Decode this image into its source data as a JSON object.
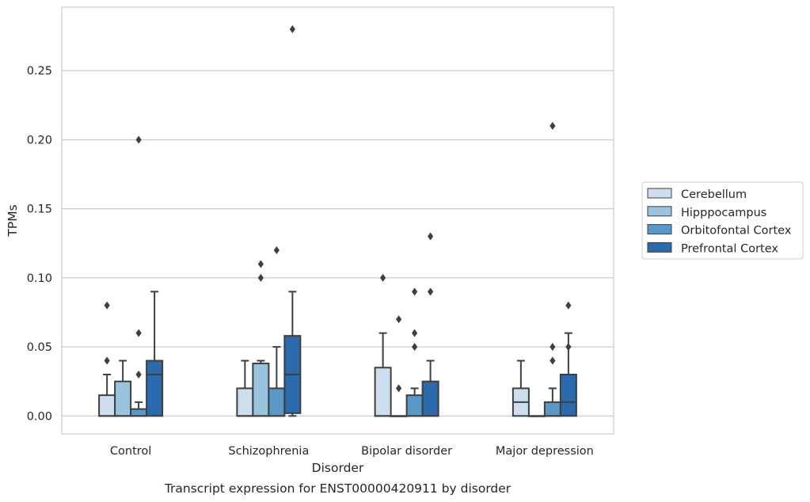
{
  "chart_data": {
    "type": "box",
    "caption": "Transcript expression for ENST00000420911 by disorder",
    "xlabel": "Disorder",
    "ylabel": "TPMs",
    "ylim": [
      -0.013,
      0.296
    ],
    "yticks": [
      0.0,
      0.05,
      0.1,
      0.15,
      0.2,
      0.25
    ],
    "ytick_labels": [
      "0.00",
      "0.05",
      "0.10",
      "0.15",
      "0.20",
      "0.25"
    ],
    "grid": "horizontal",
    "legend_position": "right",
    "categories": [
      "Control",
      "Schizophrenia",
      "Bipolar disorder",
      "Major depression"
    ],
    "series": [
      {
        "name": "Cerebellum",
        "color": "#cddeef",
        "boxes": [
          {
            "whisker_low": 0.0,
            "q1": 0.0,
            "median": 0.0,
            "q3": 0.015,
            "whisker_high": 0.03,
            "outliers": [
              0.04,
              0.08
            ]
          },
          {
            "whisker_low": 0.0,
            "q1": 0.0,
            "median": 0.0,
            "q3": 0.02,
            "whisker_high": 0.04,
            "outliers": []
          },
          {
            "whisker_low": 0.0,
            "q1": 0.0,
            "median": 0.0,
            "q3": 0.035,
            "whisker_high": 0.06,
            "outliers": [
              0.1
            ]
          },
          {
            "whisker_low": 0.0,
            "q1": 0.0,
            "median": 0.01,
            "q3": 0.02,
            "whisker_high": 0.04,
            "outliers": []
          }
        ]
      },
      {
        "name": "Hipppocampus",
        "color": "#99c3de",
        "boxes": [
          {
            "whisker_low": 0.0,
            "q1": 0.0,
            "median": 0.0,
            "q3": 0.025,
            "whisker_high": 0.04,
            "outliers": []
          },
          {
            "whisker_low": 0.0,
            "q1": 0.0,
            "median": 0.0,
            "q3": 0.038,
            "whisker_high": 0.04,
            "outliers": [
              0.1,
              0.11
            ]
          },
          {
            "whisker_low": 0.0,
            "q1": 0.0,
            "median": 0.0,
            "q3": 0.0,
            "whisker_high": 0.0,
            "outliers": [
              0.02,
              0.07
            ]
          },
          {
            "whisker_low": 0.0,
            "q1": 0.0,
            "median": 0.0,
            "q3": 0.0,
            "whisker_high": 0.0,
            "outliers": []
          }
        ]
      },
      {
        "name": "Orbitofontal Cortex",
        "color": "#5a98c7",
        "boxes": [
          {
            "whisker_low": 0.0,
            "q1": 0.0,
            "median": 0.0,
            "q3": 0.005,
            "whisker_high": 0.01,
            "outliers": [
              0.03,
              0.06,
              0.2
            ]
          },
          {
            "whisker_low": 0.0,
            "q1": 0.0,
            "median": 0.0,
            "q3": 0.02,
            "whisker_high": 0.05,
            "outliers": [
              0.12
            ]
          },
          {
            "whisker_low": 0.0,
            "q1": 0.0,
            "median": 0.0,
            "q3": 0.015,
            "whisker_high": 0.02,
            "outliers": [
              0.05,
              0.06,
              0.09
            ]
          },
          {
            "whisker_low": 0.0,
            "q1": 0.0,
            "median": 0.0,
            "q3": 0.01,
            "whisker_high": 0.02,
            "outliers": [
              0.04,
              0.05,
              0.21
            ]
          }
        ]
      },
      {
        "name": "Prefrontal Cortex",
        "color": "#2a6aad",
        "boxes": [
          {
            "whisker_low": 0.0,
            "q1": 0.0,
            "median": 0.03,
            "q3": 0.04,
            "whisker_high": 0.09,
            "outliers": []
          },
          {
            "whisker_low": 0.0,
            "q1": 0.002,
            "median": 0.03,
            "q3": 0.058,
            "whisker_high": 0.09,
            "outliers": [
              0.28
            ]
          },
          {
            "whisker_low": 0.0,
            "q1": 0.0,
            "median": 0.0,
            "q3": 0.025,
            "whisker_high": 0.04,
            "outliers": [
              0.09,
              0.13
            ]
          },
          {
            "whisker_low": 0.0,
            "q1": 0.0,
            "median": 0.01,
            "q3": 0.03,
            "whisker_high": 0.06,
            "outliers": [
              0.05,
              0.08
            ]
          }
        ]
      }
    ]
  }
}
